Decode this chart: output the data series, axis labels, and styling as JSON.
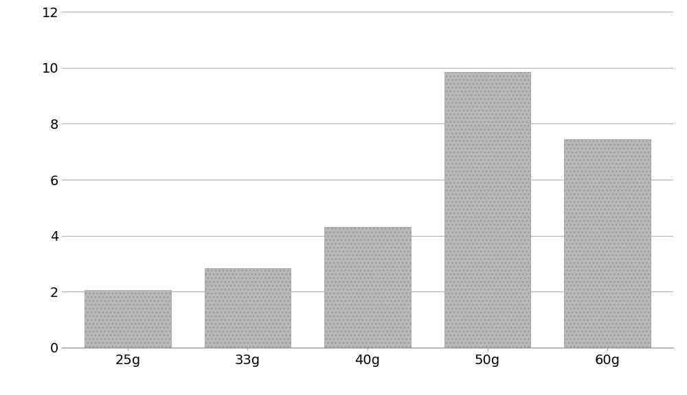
{
  "categories": [
    "25g",
    "33g",
    "40g",
    "50g",
    "60g"
  ],
  "values": [
    2.05,
    2.85,
    4.3,
    9.85,
    7.45
  ],
  "bar_color": "#b8b8b8",
  "bar_edge_color": "#999999",
  "ylim": [
    0,
    12
  ],
  "yticks": [
    0,
    2,
    4,
    6,
    8,
    10,
    12
  ],
  "background_color": "#ffffff",
  "grid_color": "#b0b0b0",
  "tick_fontsize": 14,
  "bar_width": 0.72,
  "figure_width": 10.0,
  "figure_height": 5.76
}
